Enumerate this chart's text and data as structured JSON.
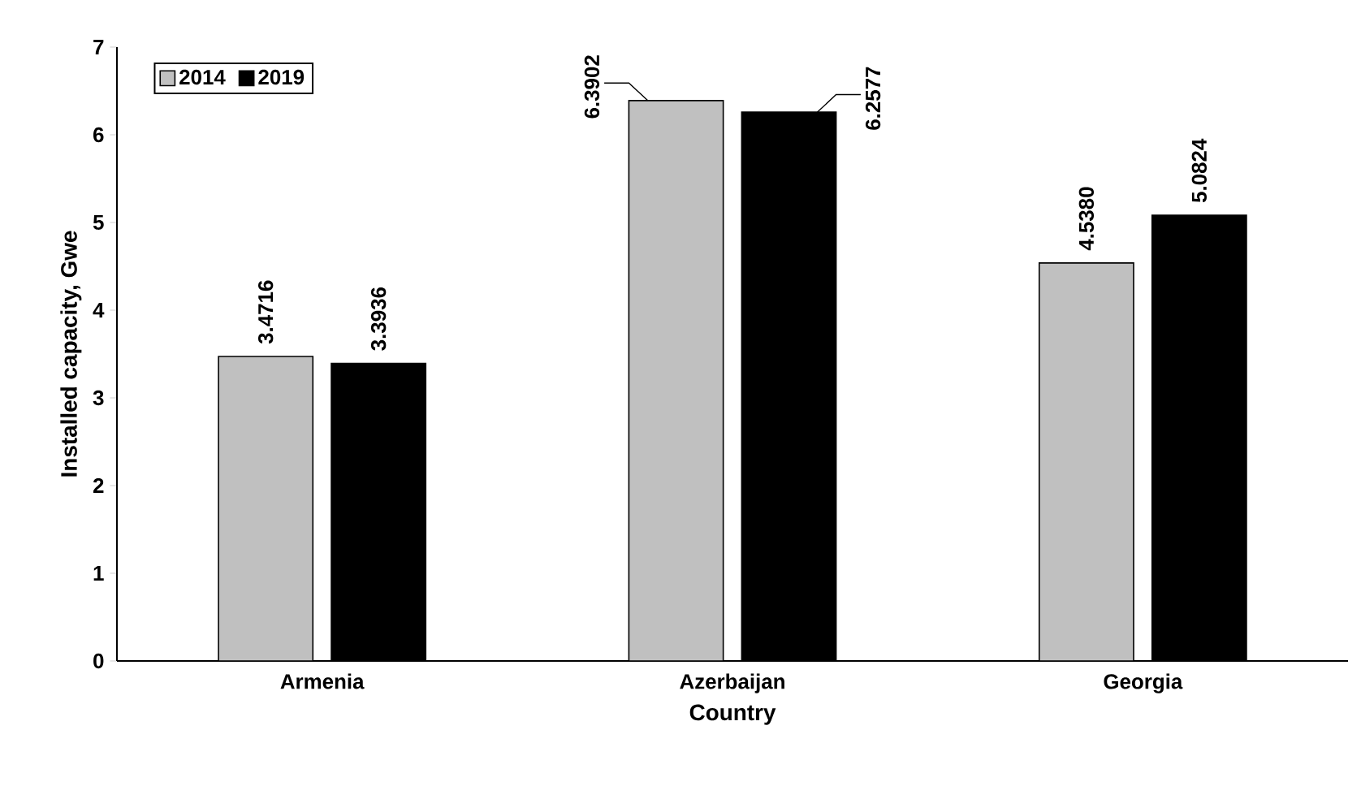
{
  "chart_data": {
    "type": "bar",
    "xlabel": "Country",
    "ylabel": "Installed capacity, Gwe",
    "categories": [
      "Armenia",
      "Azerbaijan",
      "Georgia"
    ],
    "series": [
      {
        "name": "2014",
        "color": "#c0c0c0",
        "values": [
          3.4716,
          6.3902,
          4.538
        ],
        "value_labels": [
          "3.4716",
          "6.3902",
          "4.5380"
        ]
      },
      {
        "name": "2019",
        "color": "#000000",
        "values": [
          3.3936,
          6.2577,
          5.0824
        ],
        "value_labels": [
          "3.3936",
          "6.2577",
          "5.0824"
        ]
      }
    ],
    "ylim": [
      0,
      7
    ],
    "yticks": [
      0,
      1,
      2,
      3,
      4,
      5,
      6,
      7
    ],
    "grid": false,
    "legend": "top left"
  }
}
